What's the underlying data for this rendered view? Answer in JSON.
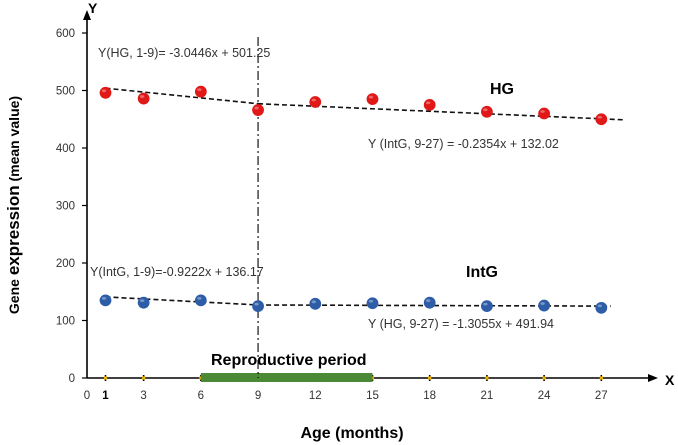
{
  "chart_data": {
    "type": "scatter",
    "x_axis_letter": "X",
    "y_axis_letter": "Y",
    "xlabel": "Age (months)",
    "ylabel_small_1": "Gene ",
    "ylabel_big": "expression",
    "ylabel_small_2": " (mean value)",
    "xlim": [
      0,
      28.5
    ],
    "ylim": [
      0,
      620
    ],
    "x_ticks": [
      0,
      1,
      3,
      6,
      9,
      12,
      15,
      18,
      21,
      24,
      27
    ],
    "x_tick_labels": [
      "0",
      "1",
      "3",
      "6",
      "9",
      "12",
      "15",
      "18",
      "21",
      "24",
      "27"
    ],
    "bold_x_ticks": [
      "1"
    ],
    "y_ticks": [
      0,
      100,
      200,
      300,
      400,
      500,
      600
    ],
    "y_tick_labels": [
      "0",
      "100",
      "200",
      "300",
      "400",
      "500",
      "600"
    ],
    "series": [
      {
        "name": "HG",
        "color": "#e01818",
        "x": [
          1,
          3,
          6,
          9,
          12,
          15,
          18,
          21,
          24,
          27
        ],
        "y": [
          496,
          486,
          498,
          466,
          480,
          485,
          475,
          463,
          460,
          450
        ],
        "trend_segments": [
          {
            "x": [
              1,
              9
            ],
            "y": [
              504,
              477
            ]
          },
          {
            "x": [
              9,
              28.2
            ],
            "y": [
              477,
              449
            ]
          }
        ]
      },
      {
        "name": "IntG",
        "color": "#2e5da8",
        "x": [
          1,
          3,
          6,
          9,
          12,
          15,
          18,
          21,
          24,
          27
        ],
        "y": [
          135,
          131,
          135,
          125,
          129,
          130,
          131,
          125,
          126,
          122
        ],
        "trend_segments": [
          {
            "x": [
              1,
              9
            ],
            "y": [
              141,
              127
            ]
          },
          {
            "x": [
              9,
              27.5
            ],
            "y": [
              127,
              125
            ]
          }
        ]
      }
    ],
    "equations": [
      "Y(HG, 1-9)= -3.0446x + 501.25",
      "Y (IntG, 9-27) = -0.2354x + 132.02",
      "Y(IntG, 1-9)=-0.9222x + 136.17",
      "Y (HG, 9-27) = -1.3055x + 491.94"
    ],
    "series_labels": [
      "HG",
      "IntG"
    ],
    "vertical_marker_x": 9,
    "reproductive_period": {
      "label": "Reproductive period",
      "x_start": 6,
      "x_end": 15,
      "color": "#4a8a34"
    },
    "x_tick_marker_color": "#f0b400"
  }
}
